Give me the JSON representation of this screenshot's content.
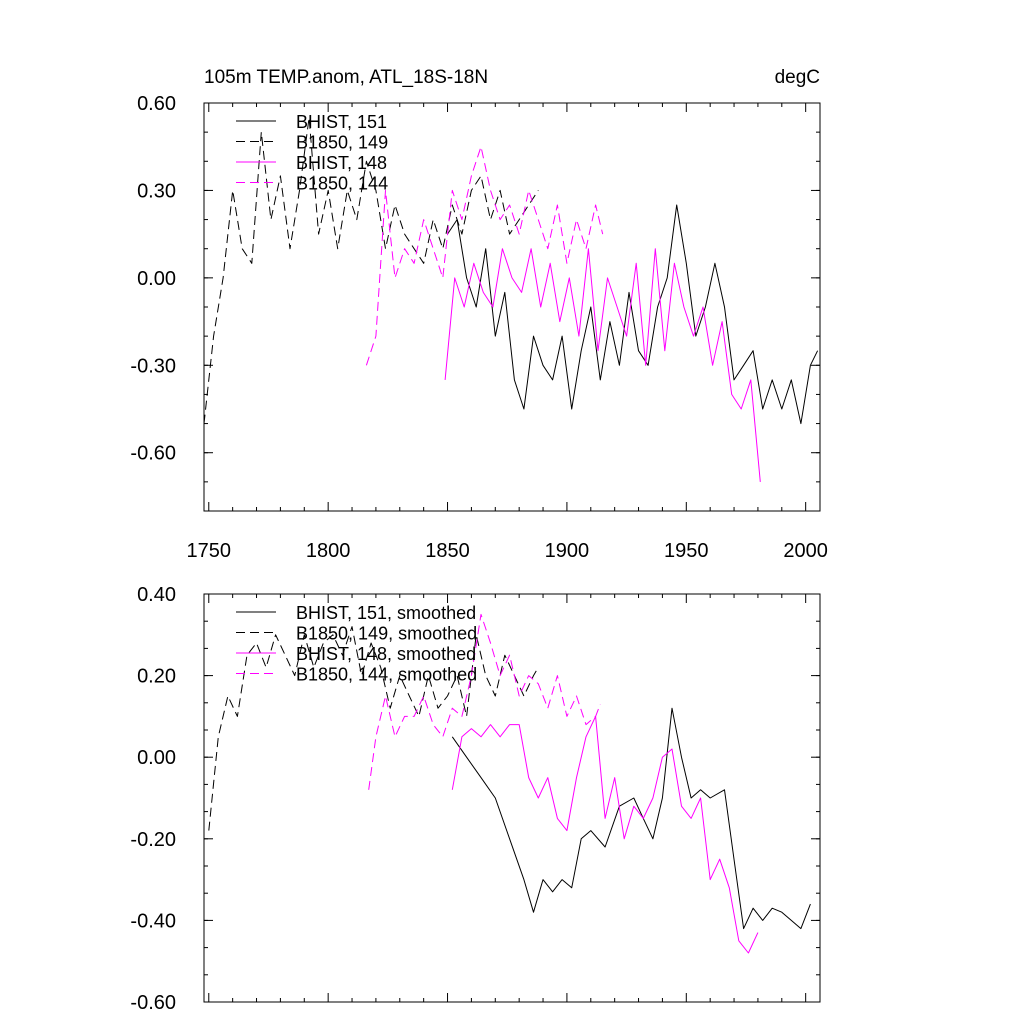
{
  "header": {
    "title_left": "105m TEMP.anom, ATL_18S-18N",
    "title_right": "degC"
  },
  "chart_data": [
    {
      "type": "line",
      "panel": "top",
      "title": "105m TEMP.anom, ATL_18S-18N",
      "units": "degC",
      "xlim": [
        1748,
        2006
      ],
      "ylim": [
        -0.8,
        0.6
      ],
      "x_ticks": [
        1750,
        1800,
        1850,
        1900,
        1950,
        2000
      ],
      "x_tick_labels": [
        "1750",
        "1800",
        "1850",
        "1900",
        "1950",
        "2000"
      ],
      "y_ticks": [
        0.6,
        0.3,
        0.0,
        -0.3,
        -0.6
      ],
      "y_tick_labels": [
        "0.60",
        "0.30",
        "0.00",
        "-0.30",
        "-0.60"
      ],
      "legend": [
        "BHIST, 151",
        "B1850, 149",
        "BHIST, 148",
        "B1850, 144"
      ],
      "series": [
        {
          "name": "BHIST, 151",
          "color": "#000000",
          "dash": false,
          "x": [
            1850,
            1854,
            1858,
            1862,
            1866,
            1870,
            1874,
            1878,
            1882,
            1886,
            1890,
            1894,
            1898,
            1902,
            1906,
            1910,
            1914,
            1918,
            1922,
            1926,
            1930,
            1934,
            1938,
            1942,
            1946,
            1950,
            1954,
            1958,
            1962,
            1966,
            1970,
            1974,
            1978,
            1982,
            1986,
            1990,
            1994,
            1998,
            2002,
            2005
          ],
          "y": [
            0.15,
            0.2,
            0.0,
            -0.1,
            0.1,
            -0.2,
            -0.05,
            -0.35,
            -0.45,
            -0.2,
            -0.3,
            -0.35,
            -0.2,
            -0.45,
            -0.25,
            -0.1,
            -0.35,
            -0.15,
            -0.3,
            -0.05,
            -0.25,
            -0.3,
            -0.1,
            0.0,
            0.25,
            0.05,
            -0.2,
            -0.1,
            0.05,
            -0.1,
            -0.35,
            -0.3,
            -0.25,
            -0.45,
            -0.35,
            -0.45,
            -0.35,
            -0.5,
            -0.3,
            -0.25
          ]
        },
        {
          "name": "B1850, 149",
          "color": "#000000",
          "dash": true,
          "x": [
            1748,
            1752,
            1756,
            1760,
            1764,
            1768,
            1772,
            1776,
            1780,
            1784,
            1788,
            1792,
            1796,
            1800,
            1804,
            1808,
            1812,
            1816,
            1820,
            1824,
            1828,
            1832,
            1836,
            1840,
            1844,
            1848,
            1852,
            1856,
            1860,
            1864,
            1868,
            1872,
            1876,
            1880,
            1884,
            1888
          ],
          "y": [
            -0.5,
            -0.2,
            0.0,
            0.3,
            0.1,
            0.05,
            0.5,
            0.2,
            0.35,
            0.1,
            0.3,
            0.55,
            0.15,
            0.3,
            0.1,
            0.3,
            0.2,
            0.4,
            0.3,
            0.1,
            0.25,
            0.15,
            0.1,
            0.05,
            0.2,
            0.1,
            0.25,
            0.15,
            0.3,
            0.35,
            0.2,
            0.3,
            0.15,
            0.2,
            0.25,
            0.3
          ]
        },
        {
          "name": "BHIST, 148",
          "color": "#ff00ff",
          "dash": false,
          "x": [
            1849,
            1853,
            1857,
            1861,
            1865,
            1869,
            1873,
            1877,
            1881,
            1885,
            1889,
            1893,
            1897,
            1901,
            1905,
            1909,
            1913,
            1917,
            1921,
            1925,
            1929,
            1933,
            1937,
            1941,
            1945,
            1949,
            1953,
            1957,
            1961,
            1965,
            1969,
            1973,
            1977,
            1981
          ],
          "y": [
            -0.35,
            0.0,
            -0.1,
            0.05,
            -0.05,
            -0.1,
            0.1,
            0.0,
            -0.05,
            0.1,
            -0.1,
            0.05,
            -0.15,
            0.0,
            -0.2,
            0.1,
            -0.25,
            0.0,
            -0.1,
            -0.2,
            0.05,
            -0.3,
            0.1,
            -0.25,
            0.05,
            -0.1,
            -0.2,
            -0.1,
            -0.3,
            -0.15,
            -0.4,
            -0.45,
            -0.35,
            -0.7
          ]
        },
        {
          "name": "B1850, 144",
          "color": "#ff00ff",
          "dash": true,
          "x": [
            1816,
            1820,
            1824,
            1828,
            1832,
            1836,
            1840,
            1844,
            1848,
            1852,
            1856,
            1860,
            1864,
            1868,
            1872,
            1876,
            1880,
            1884,
            1888,
            1892,
            1896,
            1900,
            1904,
            1908,
            1912,
            1915
          ],
          "y": [
            -0.3,
            -0.2,
            0.3,
            0.0,
            0.1,
            0.05,
            0.2,
            0.1,
            0.0,
            0.3,
            0.2,
            0.35,
            0.45,
            0.3,
            0.2,
            0.25,
            0.15,
            0.3,
            0.2,
            0.1,
            0.25,
            0.05,
            0.2,
            0.1,
            0.25,
            0.15
          ]
        }
      ]
    },
    {
      "type": "line",
      "panel": "bottom",
      "xlim": [
        1748,
        2006
      ],
      "ylim": [
        -0.6,
        0.4
      ],
      "y_ticks": [
        0.4,
        0.2,
        0.0,
        -0.2,
        -0.4,
        -0.6
      ],
      "y_tick_labels": [
        "0.40",
        "0.20",
        "0.00",
        "-0.20",
        "-0.40",
        "-0.60"
      ],
      "legend": [
        "BHIST, 151, smoothed",
        "B1850, 149, smoothed",
        "BHIST, 148, smoothed",
        "B1850, 144, smoothed"
      ],
      "series": [
        {
          "name": "BHIST, 151, smoothed",
          "color": "#000000",
          "dash": false,
          "x": [
            1852,
            1858,
            1864,
            1870,
            1876,
            1882,
            1886,
            1890,
            1894,
            1898,
            1902,
            1906,
            1910,
            1916,
            1922,
            1928,
            1932,
            1936,
            1940,
            1944,
            1948,
            1952,
            1956,
            1960,
            1966,
            1970,
            1974,
            1978,
            1982,
            1986,
            1990,
            1994,
            1998,
            2002
          ],
          "y": [
            0.05,
            0.0,
            -0.05,
            -0.1,
            -0.2,
            -0.3,
            -0.38,
            -0.3,
            -0.33,
            -0.3,
            -0.32,
            -0.2,
            -0.18,
            -0.22,
            -0.12,
            -0.1,
            -0.15,
            -0.2,
            -0.1,
            0.12,
            0.0,
            -0.1,
            -0.08,
            -0.1,
            -0.08,
            -0.25,
            -0.42,
            -0.37,
            -0.4,
            -0.37,
            -0.38,
            -0.4,
            -0.42,
            -0.36
          ]
        },
        {
          "name": "B1850, 149, smoothed",
          "color": "#000000",
          "dash": true,
          "x": [
            1750,
            1754,
            1758,
            1762,
            1766,
            1770,
            1774,
            1778,
            1782,
            1786,
            1790,
            1794,
            1798,
            1802,
            1806,
            1810,
            1814,
            1818,
            1822,
            1826,
            1830,
            1834,
            1838,
            1842,
            1846,
            1850,
            1854,
            1858,
            1862,
            1866,
            1870,
            1874,
            1878,
            1882,
            1886,
            1888
          ],
          "y": [
            -0.18,
            0.05,
            0.15,
            0.1,
            0.25,
            0.28,
            0.22,
            0.3,
            0.25,
            0.2,
            0.3,
            0.22,
            0.28,
            0.3,
            0.25,
            0.32,
            0.2,
            0.28,
            0.22,
            0.12,
            0.2,
            0.15,
            0.1,
            0.2,
            0.12,
            0.15,
            0.2,
            0.1,
            0.3,
            0.2,
            0.15,
            0.25,
            0.2,
            0.15,
            0.2,
            0.22
          ]
        },
        {
          "name": "BHIST, 148, smoothed",
          "color": "#ff00ff",
          "dash": false,
          "x": [
            1852,
            1856,
            1860,
            1864,
            1868,
            1872,
            1876,
            1880,
            1884,
            1888,
            1892,
            1896,
            1900,
            1904,
            1908,
            1912,
            1916,
            1920,
            1924,
            1928,
            1932,
            1936,
            1940,
            1944,
            1948,
            1952,
            1956,
            1960,
            1964,
            1968,
            1972,
            1976,
            1980
          ],
          "y": [
            -0.08,
            0.05,
            0.07,
            0.05,
            0.08,
            0.05,
            0.08,
            0.08,
            -0.05,
            -0.1,
            -0.05,
            -0.15,
            -0.18,
            -0.05,
            0.05,
            0.1,
            -0.15,
            -0.05,
            -0.2,
            -0.12,
            -0.15,
            -0.1,
            0.0,
            0.02,
            -0.12,
            -0.15,
            -0.1,
            -0.3,
            -0.25,
            -0.32,
            -0.45,
            -0.48,
            -0.43
          ]
        },
        {
          "name": "B1850, 144, smoothed",
          "color": "#ff00ff",
          "dash": true,
          "x": [
            1817,
            1820,
            1824,
            1828,
            1832,
            1836,
            1840,
            1844,
            1848,
            1852,
            1856,
            1860,
            1864,
            1868,
            1872,
            1876,
            1880,
            1884,
            1888,
            1892,
            1896,
            1900,
            1904,
            1908,
            1912,
            1914
          ],
          "y": [
            -0.08,
            0.05,
            0.15,
            0.05,
            0.1,
            0.1,
            0.15,
            0.08,
            0.05,
            0.12,
            0.1,
            0.2,
            0.35,
            0.28,
            0.2,
            0.25,
            0.15,
            0.2,
            0.18,
            0.12,
            0.2,
            0.1,
            0.15,
            0.08,
            0.1,
            0.13
          ]
        }
      ]
    }
  ]
}
